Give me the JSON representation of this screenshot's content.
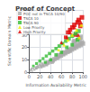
{
  "chart_data": {
    "type": "scatter",
    "title": "Proof of Concept",
    "xlabel": "Information Availability Metric",
    "ylabel": "Scientific Domain Metric",
    "xlim": [
      0,
      100
    ],
    "ylim": [
      0,
      50
    ],
    "xticks": [
      0,
      20,
      40,
      60,
      80,
      100
    ],
    "yticks": [
      0,
      10,
      20,
      30,
      40,
      50
    ],
    "grid": true,
    "legend": "upper left",
    "series": [
      {
        "name": "POC not in TSCA 10/90",
        "color": "#aaaaaa",
        "marker": "square",
        "x": [
          2,
          4,
          6,
          8,
          10,
          12,
          14,
          16,
          18,
          20,
          22,
          24,
          26,
          28,
          30,
          32,
          34,
          36,
          38,
          40,
          42,
          44,
          46,
          48,
          50,
          52,
          54,
          56,
          58,
          60,
          62,
          64,
          66,
          68,
          70,
          72,
          74,
          76,
          78,
          80,
          82,
          84,
          86,
          88,
          90,
          92,
          94,
          96,
          98,
          100,
          5,
          15,
          25,
          35,
          45,
          55,
          65,
          75,
          85,
          95,
          3,
          13,
          23,
          33,
          43,
          53,
          63,
          73,
          83,
          93
        ],
        "values": [
          1,
          2,
          1,
          3,
          2,
          4,
          3,
          5,
          4,
          6,
          5,
          7,
          6,
          5,
          7,
          6,
          8,
          7,
          9,
          8,
          10,
          9,
          11,
          10,
          12,
          11,
          13,
          12,
          14,
          13,
          15,
          14,
          16,
          15,
          17,
          16,
          18,
          17,
          19,
          18,
          20,
          19,
          21,
          20,
          22,
          21,
          23,
          22,
          24,
          23,
          3,
          4,
          5,
          8,
          9,
          14,
          16,
          18,
          25,
          28,
          2,
          3,
          4,
          6,
          8,
          12,
          15,
          17,
          24,
          27
        ],
        "sizes": [
          2,
          2,
          2,
          2,
          3,
          3,
          3,
          3,
          4,
          4,
          4,
          4,
          5,
          5,
          5,
          5,
          6,
          6,
          6,
          6,
          7,
          7,
          7,
          7,
          8,
          8,
          8,
          8,
          9,
          9,
          9,
          9,
          10,
          10,
          10,
          10,
          11,
          11,
          11,
          11,
          12,
          12,
          12,
          12,
          13,
          13,
          13,
          13,
          14,
          14,
          3,
          4,
          5,
          7,
          8,
          10,
          12,
          14,
          16,
          18,
          2,
          3,
          4,
          6,
          8,
          10,
          12,
          14,
          16,
          18
        ]
      },
      {
        "name": "TSCA 10",
        "color": "#dd0000",
        "marker": "square",
        "x": [
          68,
          72,
          76,
          80,
          84,
          86,
          90,
          92,
          95,
          98
        ],
        "values": [
          28,
          32,
          34,
          36,
          38,
          30,
          40,
          42,
          37,
          44
        ],
        "sizes": [
          10,
          12,
          12,
          13,
          14,
          11,
          15,
          14,
          13,
          15
        ]
      },
      {
        "name": "TSCA 90",
        "color": "#33bb33",
        "marker": "square",
        "x": [
          8,
          14,
          20,
          26,
          32,
          38,
          44,
          50,
          56,
          62,
          68,
          74,
          80,
          86,
          92,
          30,
          50,
          70,
          90,
          40,
          60,
          80
        ],
        "values": [
          5,
          7,
          9,
          11,
          13,
          15,
          17,
          19,
          21,
          23,
          25,
          27,
          29,
          31,
          33,
          8,
          14,
          20,
          26,
          10,
          16,
          22
        ],
        "sizes": [
          5,
          6,
          7,
          6,
          7,
          8,
          7,
          8,
          9,
          8,
          9,
          10,
          10,
          11,
          12,
          6,
          8,
          9,
          11,
          7,
          8,
          9
        ]
      },
      {
        "name": "Low Priority",
        "color": "#eeee00",
        "marker": "triangle",
        "x": [
          55,
          65,
          72,
          80,
          88,
          93,
          97
        ],
        "values": [
          18,
          22,
          26,
          30,
          34,
          28,
          38
        ],
        "sizes": [
          8,
          9,
          10,
          10,
          11,
          10,
          12
        ]
      },
      {
        "name": "High Priority",
        "color": "#dd0000",
        "marker": "triangle",
        "x": [
          60,
          70,
          76,
          84,
          91,
          96
        ],
        "values": [
          24,
          28,
          32,
          36,
          30,
          40
        ],
        "sizes": [
          9,
          10,
          11,
          11,
          10,
          12
        ]
      }
    ]
  }
}
